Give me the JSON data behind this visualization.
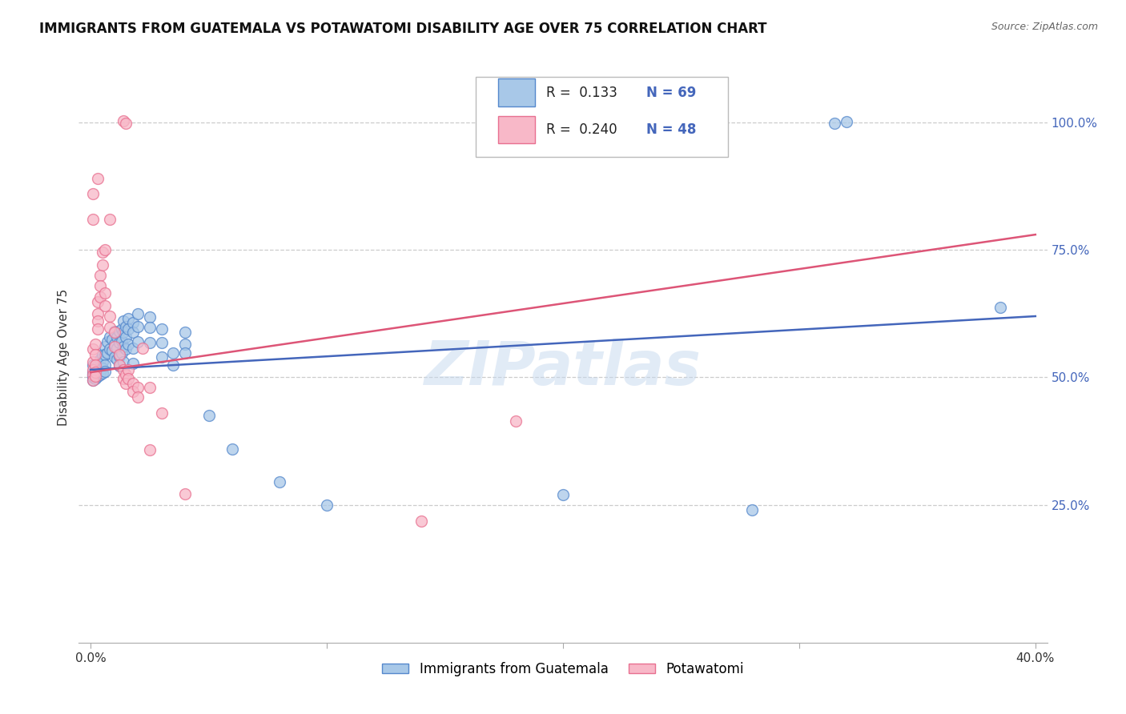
{
  "title": "IMMIGRANTS FROM GUATEMALA VS POTAWATOMI DISABILITY AGE OVER 75 CORRELATION CHART",
  "source": "Source: ZipAtlas.com",
  "ylabel": "Disability Age Over 75",
  "right_ytick_values": [
    0.25,
    0.5,
    0.75,
    1.0
  ],
  "right_ytick_labels": [
    "25.0%",
    "50.0%",
    "75.0%",
    "100.0%"
  ],
  "blue_R": 0.133,
  "blue_N": 69,
  "pink_R": 0.24,
  "pink_N": 48,
  "blue_color": "#a8c8e8",
  "pink_color": "#f8b8c8",
  "blue_edge_color": "#5588cc",
  "pink_edge_color": "#e87090",
  "blue_line_color": "#4466bb",
  "pink_line_color": "#dd5577",
  "watermark": "ZIPatlas",
  "blue_line_x": [
    0.0,
    0.4
  ],
  "blue_line_y": [
    0.515,
    0.62
  ],
  "pink_line_x": [
    0.0,
    0.4
  ],
  "pink_line_y": [
    0.51,
    0.78
  ],
  "blue_scatter": [
    [
      0.001,
      0.525
    ],
    [
      0.001,
      0.51
    ],
    [
      0.001,
      0.505
    ],
    [
      0.001,
      0.495
    ],
    [
      0.001,
      0.5
    ],
    [
      0.002,
      0.52
    ],
    [
      0.002,
      0.515
    ],
    [
      0.002,
      0.51
    ],
    [
      0.002,
      0.505
    ],
    [
      0.002,
      0.498
    ],
    [
      0.003,
      0.522
    ],
    [
      0.003,
      0.515
    ],
    [
      0.003,
      0.508
    ],
    [
      0.003,
      0.502
    ],
    [
      0.004,
      0.535
    ],
    [
      0.004,
      0.52
    ],
    [
      0.004,
      0.512
    ],
    [
      0.004,
      0.505
    ],
    [
      0.005,
      0.545
    ],
    [
      0.005,
      0.53
    ],
    [
      0.005,
      0.518
    ],
    [
      0.005,
      0.508
    ],
    [
      0.006,
      0.56
    ],
    [
      0.006,
      0.545
    ],
    [
      0.006,
      0.525
    ],
    [
      0.006,
      0.512
    ],
    [
      0.007,
      0.57
    ],
    [
      0.007,
      0.548
    ],
    [
      0.008,
      0.58
    ],
    [
      0.008,
      0.555
    ],
    [
      0.009,
      0.575
    ],
    [
      0.009,
      0.552
    ],
    [
      0.01,
      0.59
    ],
    [
      0.01,
      0.565
    ],
    [
      0.01,
      0.54
    ],
    [
      0.011,
      0.58
    ],
    [
      0.011,
      0.558
    ],
    [
      0.011,
      0.535
    ],
    [
      0.012,
      0.59
    ],
    [
      0.012,
      0.568
    ],
    [
      0.012,
      0.542
    ],
    [
      0.012,
      0.522
    ],
    [
      0.013,
      0.595
    ],
    [
      0.013,
      0.572
    ],
    [
      0.013,
      0.548
    ],
    [
      0.014,
      0.61
    ],
    [
      0.014,
      0.588
    ],
    [
      0.014,
      0.56
    ],
    [
      0.014,
      0.53
    ],
    [
      0.015,
      0.6
    ],
    [
      0.015,
      0.58
    ],
    [
      0.015,
      0.555
    ],
    [
      0.016,
      0.615
    ],
    [
      0.016,
      0.595
    ],
    [
      0.016,
      0.565
    ],
    [
      0.018,
      0.608
    ],
    [
      0.018,
      0.588
    ],
    [
      0.018,
      0.558
    ],
    [
      0.018,
      0.528
    ],
    [
      0.02,
      0.625
    ],
    [
      0.02,
      0.6
    ],
    [
      0.02,
      0.57
    ],
    [
      0.025,
      0.618
    ],
    [
      0.025,
      0.598
    ],
    [
      0.025,
      0.568
    ],
    [
      0.03,
      0.595
    ],
    [
      0.03,
      0.568
    ],
    [
      0.03,
      0.54
    ],
    [
      0.035,
      0.548
    ],
    [
      0.035,
      0.525
    ],
    [
      0.04,
      0.588
    ],
    [
      0.04,
      0.565
    ],
    [
      0.04,
      0.548
    ],
    [
      0.05,
      0.425
    ],
    [
      0.06,
      0.36
    ],
    [
      0.08,
      0.295
    ],
    [
      0.1,
      0.25
    ],
    [
      0.2,
      0.27
    ],
    [
      0.28,
      0.24
    ],
    [
      0.32,
      1.002
    ],
    [
      0.315,
      0.998
    ],
    [
      0.385,
      0.638
    ]
  ],
  "pink_scatter": [
    [
      0.001,
      0.555
    ],
    [
      0.001,
      0.53
    ],
    [
      0.001,
      0.515
    ],
    [
      0.001,
      0.505
    ],
    [
      0.001,
      0.495
    ],
    [
      0.002,
      0.565
    ],
    [
      0.002,
      0.545
    ],
    [
      0.002,
      0.525
    ],
    [
      0.002,
      0.51
    ],
    [
      0.002,
      0.502
    ],
    [
      0.003,
      0.648
    ],
    [
      0.003,
      0.625
    ],
    [
      0.003,
      0.61
    ],
    [
      0.003,
      0.595
    ],
    [
      0.004,
      0.7
    ],
    [
      0.004,
      0.68
    ],
    [
      0.004,
      0.658
    ],
    [
      0.005,
      0.745
    ],
    [
      0.005,
      0.72
    ],
    [
      0.006,
      0.665
    ],
    [
      0.006,
      0.64
    ],
    [
      0.008,
      0.62
    ],
    [
      0.008,
      0.598
    ],
    [
      0.01,
      0.588
    ],
    [
      0.01,
      0.56
    ],
    [
      0.012,
      0.545
    ],
    [
      0.012,
      0.525
    ],
    [
      0.014,
      0.515
    ],
    [
      0.014,
      0.498
    ],
    [
      0.015,
      0.505
    ],
    [
      0.015,
      0.488
    ],
    [
      0.016,
      0.515
    ],
    [
      0.016,
      0.498
    ],
    [
      0.018,
      0.488
    ],
    [
      0.018,
      0.472
    ],
    [
      0.02,
      0.48
    ],
    [
      0.02,
      0.462
    ],
    [
      0.022,
      0.558
    ],
    [
      0.025,
      0.48
    ],
    [
      0.03,
      0.43
    ],
    [
      0.04,
      0.272
    ],
    [
      0.14,
      0.218
    ],
    [
      0.18,
      0.415
    ],
    [
      0.001,
      0.86
    ],
    [
      0.001,
      0.81
    ],
    [
      0.003,
      0.89
    ],
    [
      0.006,
      0.75
    ],
    [
      0.008,
      0.81
    ],
    [
      0.014,
      1.003
    ],
    [
      0.015,
      0.998
    ],
    [
      0.025,
      0.358
    ]
  ],
  "xlim": [
    -0.005,
    0.405
  ],
  "ylim": [
    -0.02,
    1.1
  ],
  "legend_labels": [
    "Immigrants from Guatemala",
    "Potawatomi"
  ],
  "title_fontsize": 12,
  "source_fontsize": 9
}
